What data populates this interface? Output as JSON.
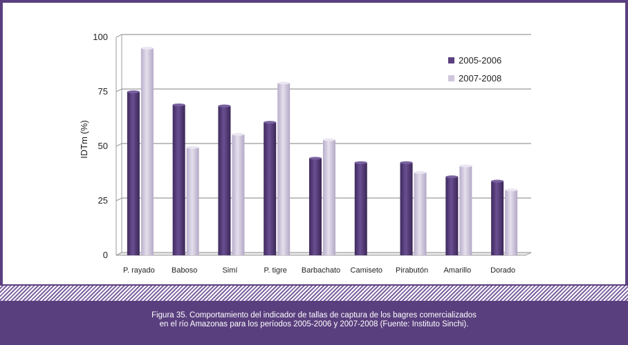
{
  "caption": {
    "line1": "Figura 35. Comportamiento del indicador de tallas de captura de los bagres comercializados",
    "line2": "en el río Amazonas para los períodos 2005-2006 y 2007-2008 (Fuente: Instituto Sinchi)."
  },
  "chart_data": {
    "type": "bar",
    "ylabel": "IDTm (%)",
    "ylim": [
      0,
      100
    ],
    "yticks": [
      0,
      25,
      50,
      75,
      100
    ],
    "grid": true,
    "legend_position": "top-right",
    "categories": [
      "P. rayado",
      "Baboso",
      "Simí",
      "P. tigre",
      "Barbachato",
      "Camiseto",
      "Pirabutón",
      "Amarillo",
      "Dorado"
    ],
    "series": [
      {
        "name": "2005-2006",
        "color": "#5b3f7f",
        "values": [
          75,
          69,
          68.5,
          61,
          44.5,
          42.5,
          42.5,
          36,
          34
        ]
      },
      {
        "name": "2007-2008",
        "color": "#cfc6dd",
        "values": [
          95,
          49.5,
          55.5,
          79,
          53,
          null,
          38,
          41,
          30
        ]
      }
    ]
  }
}
